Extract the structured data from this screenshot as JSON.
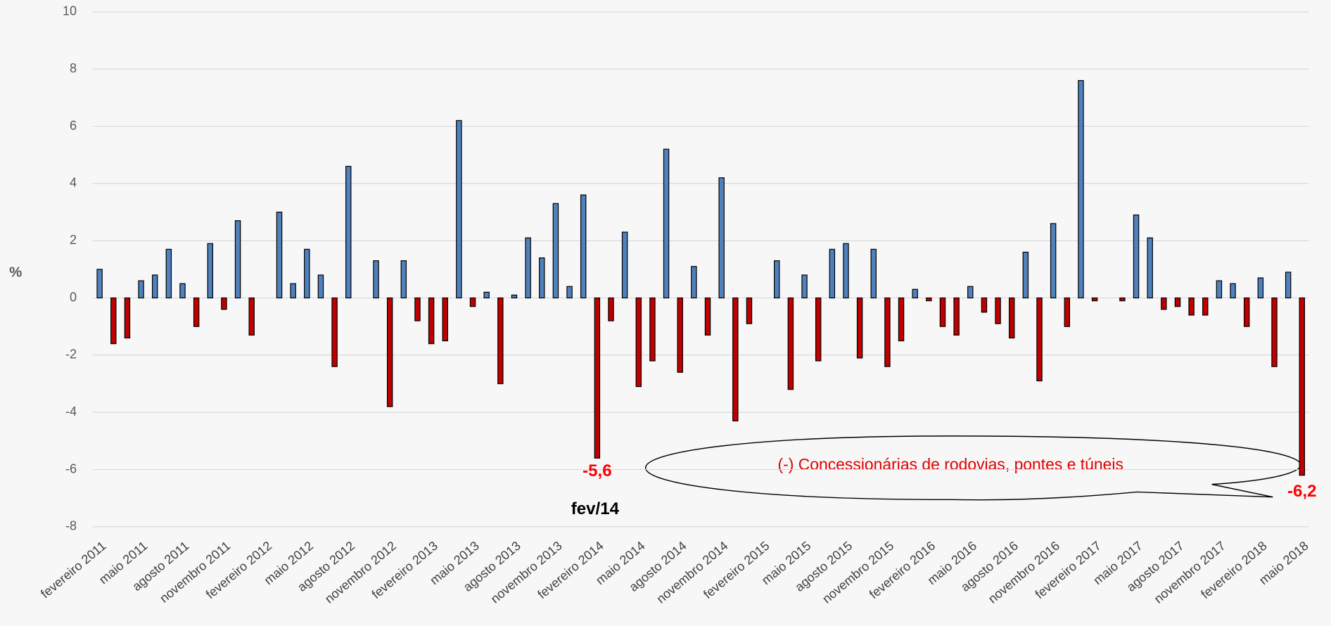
{
  "chart_data": {
    "type": "bar",
    "y_label": "%",
    "categories": [
      "fevereiro 2011",
      null,
      null,
      "maio 2011",
      null,
      null,
      "agosto 2011",
      null,
      null,
      "novembro 2011",
      null,
      null,
      "fevereiro 2012",
      null,
      null,
      "maio 2012",
      null,
      null,
      "agosto 2012",
      null,
      null,
      "novembro 2012",
      null,
      null,
      "fevereiro 2013",
      null,
      null,
      "maio 2013",
      null,
      null,
      "agosto 2013",
      null,
      null,
      "novembro 2013",
      null,
      null,
      "fevereiro 2014",
      null,
      null,
      "maio 2014",
      null,
      null,
      "agosto 2014",
      null,
      null,
      "novembro 2014",
      null,
      null,
      "fevereiro 2015",
      null,
      null,
      "maio 2015",
      null,
      null,
      "agosto 2015",
      null,
      null,
      "novembro 2015",
      null,
      null,
      "fevereiro 2016",
      null,
      null,
      "maio 2016",
      null,
      null,
      "agosto 2016",
      null,
      null,
      "novembro 2016",
      null,
      null,
      "fevereiro 2017",
      null,
      null,
      "maio 2017",
      null,
      null,
      "agosto 2017",
      null,
      null,
      "novembro 2017",
      null,
      null,
      "fevereiro 2018",
      null,
      null,
      "maio 2018"
    ],
    "values": [
      1.0,
      -1.6,
      -1.4,
      0.6,
      0.8,
      1.7,
      0.5,
      -1.0,
      1.9,
      -0.4,
      2.7,
      -1.3,
      0,
      3.0,
      0.5,
      1.7,
      0.8,
      -2.4,
      4.6,
      0,
      1.3,
      -3.8,
      1.3,
      -0.8,
      -1.6,
      -1.5,
      6.2,
      -0.3,
      0.2,
      -3.0,
      0.1,
      2.1,
      1.4,
      3.3,
      0.4,
      3.6,
      -5.6,
      -0.8,
      2.3,
      -3.1,
      -2.2,
      5.2,
      -2.6,
      1.1,
      -1.3,
      4.2,
      -4.3,
      -0.9,
      0,
      1.3,
      -3.2,
      0.8,
      -2.2,
      1.7,
      1.9,
      -2.1,
      1.7,
      -2.4,
      -1.5,
      0.3,
      -0.1,
      -1.0,
      -1.3,
      0.4,
      -0.5,
      -0.9,
      -1.4,
      1.6,
      -2.9,
      2.6,
      -1.0,
      7.6,
      -0.1,
      0,
      -0.1,
      2.9,
      2.1,
      -0.4,
      -0.3,
      -0.6,
      -0.6,
      0.6,
      0.5,
      -1.0,
      0.7,
      -2.4,
      0.9,
      -6.2
    ],
    "value_labels": [
      null,
      null,
      null,
      null,
      null,
      null,
      null,
      null,
      null,
      null,
      null,
      null,
      null,
      null,
      null,
      null,
      null,
      null,
      null,
      null,
      null,
      null,
      null,
      null,
      null,
      null,
      null,
      null,
      null,
      null,
      null,
      null,
      null,
      null,
      null,
      null,
      "-5,6",
      null,
      null,
      null,
      null,
      null,
      null,
      null,
      null,
      null,
      null,
      null,
      null,
      null,
      null,
      null,
      null,
      null,
      null,
      null,
      null,
      null,
      null,
      null,
      null,
      null,
      null,
      null,
      null,
      null,
      null,
      null,
      null,
      null,
      null,
      null,
      null,
      null,
      null,
      null,
      null,
      null,
      null,
      null,
      null,
      null,
      null,
      null,
      null,
      null,
      null,
      "-6,2"
    ],
    "positive_color": "#4f81bd",
    "negative_color": "#c00000",
    "ylim": [
      -8,
      10
    ],
    "yticks": [
      -8,
      -6,
      -4,
      -2,
      0,
      2,
      4,
      6,
      8,
      10
    ],
    "grid": true,
    "annotations": [
      {
        "text": "fev/14"
      },
      {
        "text": "(-) Concessionárias de rodovias, pontes e túneis"
      }
    ]
  }
}
